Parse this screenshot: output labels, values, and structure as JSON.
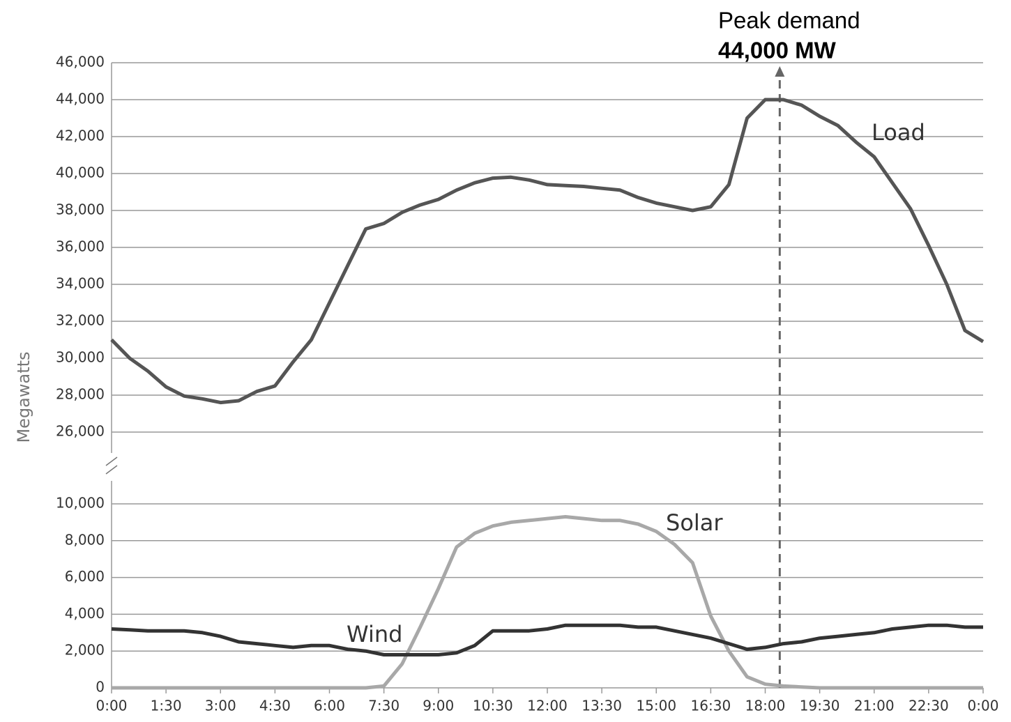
{
  "chart_data": {
    "type": "line",
    "ylabel": "Megawatts",
    "x": [
      0,
      0.5,
      1,
      1.5,
      2,
      2.5,
      3,
      3.5,
      4,
      4.5,
      5,
      5.5,
      6,
      6.5,
      7,
      7.5,
      8,
      8.5,
      9,
      9.5,
      10,
      10.5,
      11,
      11.5,
      12,
      12.5,
      13,
      13.5,
      14,
      14.5,
      15,
      15.5,
      16,
      16.5,
      17,
      17.5,
      18,
      18.5,
      19,
      19.5,
      20,
      20.5,
      21,
      21.5,
      22,
      22.5,
      23,
      23.5,
      24
    ],
    "series": [
      {
        "name": "Load",
        "color": "#555555",
        "values": [
          31000,
          30000,
          29300,
          28450,
          27950,
          27800,
          27600,
          27700,
          28200,
          28500,
          29800,
          31000,
          33000,
          35000,
          37000,
          37300,
          37900,
          38300,
          38600,
          39100,
          39500,
          39750,
          39800,
          39650,
          39400,
          39350,
          39300,
          39200,
          39100,
          38700,
          38400,
          38200,
          38000,
          38200,
          39400,
          43000,
          44000,
          44000,
          43700,
          43100,
          42600,
          41700,
          40900,
          39500,
          38100,
          36100,
          34000,
          31500,
          30900
        ]
      },
      {
        "name": "Solar",
        "color": "#a8a8a8",
        "values": [
          0,
          0,
          0,
          0,
          0,
          0,
          0,
          0,
          0,
          0,
          0,
          0,
          0,
          0,
          0,
          100,
          1300,
          3300,
          5400,
          7650,
          8400,
          8800,
          9000,
          9100,
          9200,
          9300,
          9200,
          9100,
          9100,
          8900,
          8500,
          7800,
          6800,
          3900,
          2000,
          600,
          200,
          100,
          50,
          0,
          0,
          0,
          0,
          0,
          0,
          0,
          0,
          0,
          0
        ]
      },
      {
        "name": "Wind",
        "color": "#333333",
        "values": [
          3200,
          3150,
          3100,
          3100,
          3100,
          3000,
          2800,
          2500,
          2400,
          2300,
          2200,
          2300,
          2300,
          2100,
          2000,
          1800,
          1800,
          1800,
          1800,
          1900,
          2300,
          3100,
          3100,
          3100,
          3200,
          3400,
          3400,
          3400,
          3400,
          3300,
          3300,
          3100,
          2900,
          2700,
          2400,
          2100,
          2200,
          2400,
          2500,
          2700,
          2800,
          2900,
          3000,
          3200,
          3300,
          3400,
          3400,
          3300,
          3300
        ]
      }
    ],
    "xlim": [
      0,
      24
    ],
    "xticks": [
      {
        "value": 0,
        "label": "0:00"
      },
      {
        "value": 1.5,
        "label": "1:30"
      },
      {
        "value": 3,
        "label": "3:00"
      },
      {
        "value": 4.5,
        "label": "4:30"
      },
      {
        "value": 6,
        "label": "6:00"
      },
      {
        "value": 7.5,
        "label": "7:30"
      },
      {
        "value": 9,
        "label": "9:00"
      },
      {
        "value": 10.5,
        "label": "10:30"
      },
      {
        "value": 12,
        "label": "12:00"
      },
      {
        "value": 13.5,
        "label": "13:30"
      },
      {
        "value": 15,
        "label": "15:00"
      },
      {
        "value": 16.5,
        "label": "16:30"
      },
      {
        "value": 18,
        "label": "18:00"
      },
      {
        "value": 19.5,
        "label": "19:30"
      },
      {
        "value": 21,
        "label": "21:00"
      },
      {
        "value": 22.5,
        "label": "22:30"
      },
      {
        "value": 24,
        "label": "0:00"
      }
    ],
    "ylim": [
      0,
      46000
    ],
    "y_break": [
      10000,
      26000
    ],
    "yticks": [
      0,
      {
        "value": 2000,
        "label": "2,000"
      },
      {
        "value": 4000,
        "label": "4,000"
      },
      {
        "value": 6000,
        "label": "6,000"
      },
      {
        "value": 8000,
        "label": "8,000"
      },
      {
        "value": 10000,
        "label": "10,000"
      },
      {
        "value": 26000,
        "label": "26,000"
      },
      {
        "value": 28000,
        "label": "28,000"
      },
      {
        "value": 30000,
        "label": "30,000"
      },
      {
        "value": 32000,
        "label": "32,000"
      },
      {
        "value": 34000,
        "label": "34,000"
      },
      {
        "value": 36000,
        "label": "36,000"
      },
      {
        "value": 38000,
        "label": "38,000"
      },
      {
        "value": 40000,
        "label": "40,000"
      },
      {
        "value": 42000,
        "label": "42,000"
      },
      {
        "value": 44000,
        "label": "44,000"
      },
      {
        "value": 46000,
        "label": "46,000"
      }
    ],
    "grid": true,
    "annotation": {
      "text": "Peak demand",
      "value_label": "44,000 MW",
      "value": 44000,
      "x": 18.4
    }
  }
}
